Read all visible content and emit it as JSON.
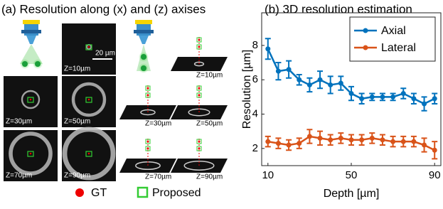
{
  "panel_a": {
    "title": "(a) Resolution along (x) and (z) axises",
    "scale_bar": "20 µm",
    "image_labels": [
      "Z=10µm",
      "Z=30µm",
      "Z=50µm",
      "Z=70µm",
      "Z=90µm"
    ],
    "plane_labels": [
      "Z=10µm",
      "Z=30µm",
      "Z=50µm",
      "Z=70µm",
      "Z=90µm"
    ],
    "legend": [
      "GT",
      "Proposed"
    ]
  },
  "chart_data": {
    "type": "line",
    "title": "(b) 3D resolution estimation",
    "x_label": "Depth [µm]",
    "y_label": "Resolution [µm]",
    "x": [
      10,
      15,
      20,
      25,
      30,
      35,
      40,
      45,
      50,
      55,
      60,
      65,
      70,
      75,
      80,
      85,
      90
    ],
    "series": [
      {
        "name": "Axial",
        "color": "#0072bd",
        "values": [
          7.8,
          6.5,
          6.6,
          6.0,
          5.7,
          6.0,
          5.7,
          5.8,
          5.2,
          4.9,
          5.0,
          5.0,
          5.0,
          5.2,
          4.9,
          4.6,
          4.9
        ],
        "errors": [
          0.6,
          0.5,
          0.5,
          0.3,
          0.4,
          0.5,
          0.5,
          0.4,
          0.4,
          0.3,
          0.2,
          0.2,
          0.2,
          0.3,
          0.3,
          0.4,
          0.3
        ]
      },
      {
        "name": "Lateral",
        "color": "#d95319",
        "values": [
          2.4,
          2.3,
          2.2,
          2.3,
          2.7,
          2.6,
          2.5,
          2.6,
          2.5,
          2.5,
          2.6,
          2.5,
          2.4,
          2.4,
          2.4,
          2.2,
          1.9
        ],
        "errors": [
          0.3,
          0.3,
          0.3,
          0.3,
          0.4,
          0.4,
          0.3,
          0.3,
          0.3,
          0.3,
          0.3,
          0.3,
          0.3,
          0.3,
          0.3,
          0.4,
          0.5
        ]
      }
    ],
    "xlim": [
      7,
      93
    ],
    "ylim": [
      1,
      9.9
    ],
    "xticks": [
      10,
      50,
      90
    ],
    "yticks": [
      2,
      4,
      6,
      8
    ],
    "legend": "upper right"
  }
}
